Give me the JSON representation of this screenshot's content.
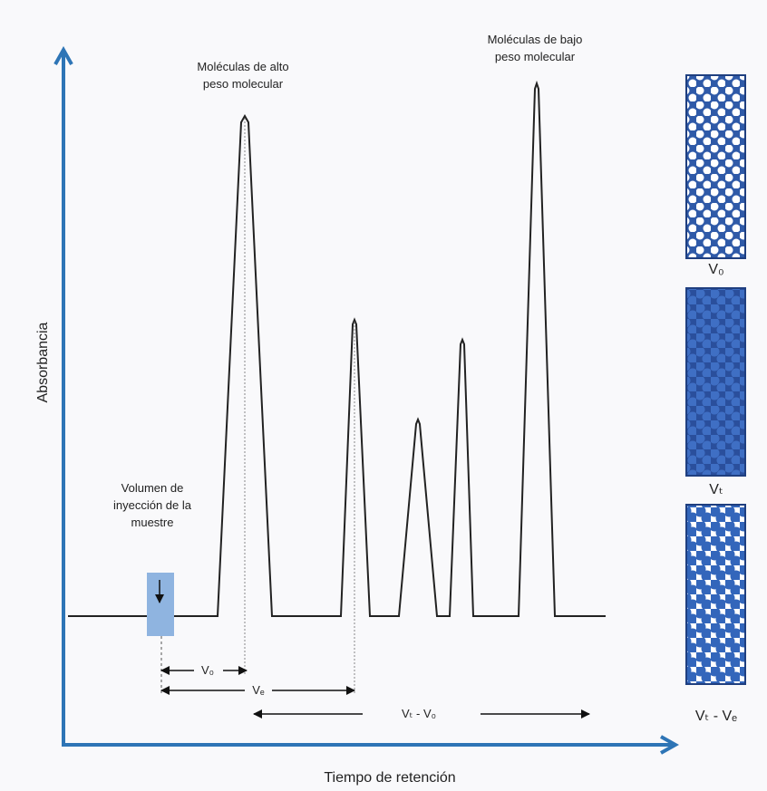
{
  "axis_labels": {
    "y": "Absorbancia",
    "x": "Tiempo de retención"
  },
  "annotations": {
    "high_molecular_weight": [
      "Moléculas de alto",
      "peso molecular"
    ],
    "low_molecular_weight": [
      "Moléculas de bajo",
      "peso molecular"
    ],
    "injection_volume": [
      "Volumen de",
      "inyección de la",
      "muestre"
    ]
  },
  "volume_labels": {
    "void": "V₀",
    "elution": "Vₑ",
    "range": "Vₜ - V₀"
  },
  "columns": [
    {
      "label": "V₀"
    },
    {
      "label": "Vₜ"
    },
    {
      "label": "Vₜ - Vₑ"
    }
  ]
}
